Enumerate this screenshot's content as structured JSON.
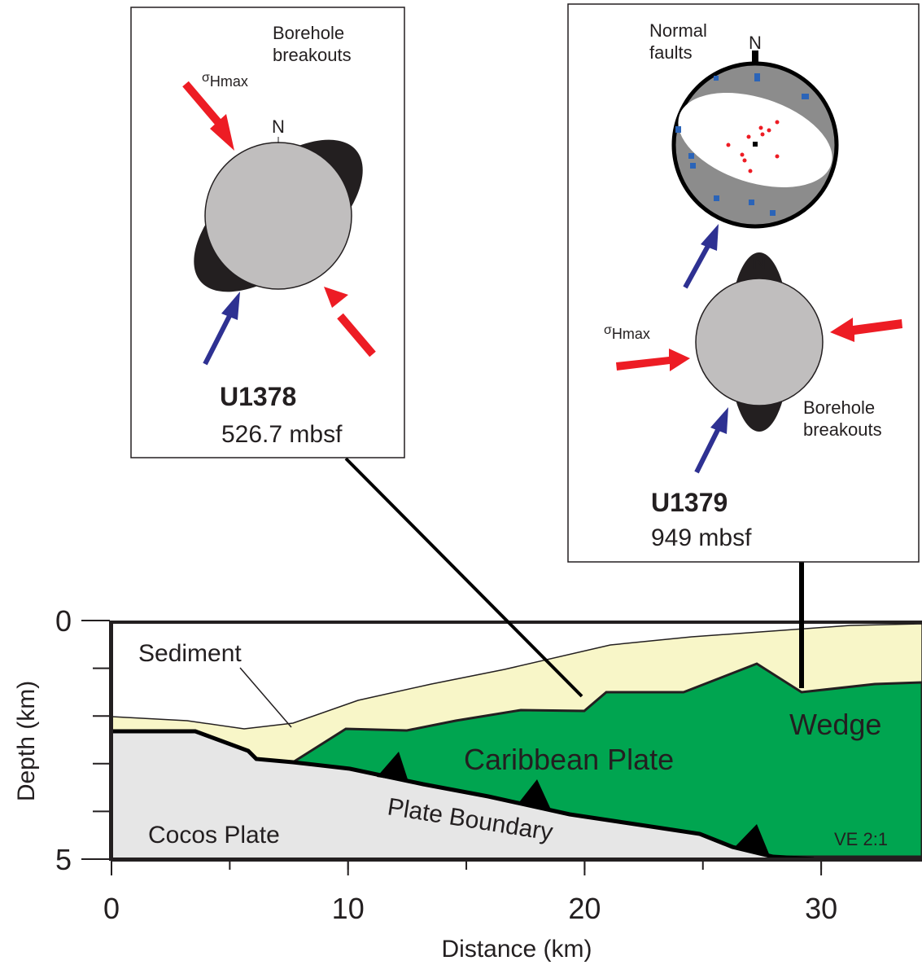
{
  "cross_section": {
    "x_axis": {
      "label": "Distance (km)",
      "ticks": [
        0,
        10,
        20,
        30
      ]
    },
    "y_axis": {
      "label": "Depth (km)",
      "ticks": [
        0,
        5
      ]
    },
    "regions": {
      "sediment": "Sediment",
      "wedge": "Wedge",
      "caribbean": "Caribbean Plate",
      "boundary": "Plate Boundary",
      "cocos": "Cocos Plate"
    },
    "exaggeration": "VE 2:1"
  },
  "insets": [
    {
      "site": "U1378",
      "depth": "526.7 mbsf",
      "breakouts": [
        "Borehole",
        "breakouts"
      ],
      "stress": {
        "symbol": "σ",
        "subscript": "Hmax"
      },
      "north": "N"
    },
    {
      "site": "U1379",
      "depth": "949 mbsf",
      "breakouts": [
        "Borehole",
        "breakouts"
      ],
      "stress": {
        "symbol": "σ",
        "subscript": "Hmax"
      },
      "north": "N",
      "faults": [
        "Normal",
        "faults"
      ],
      "north2": "N"
    }
  ]
}
